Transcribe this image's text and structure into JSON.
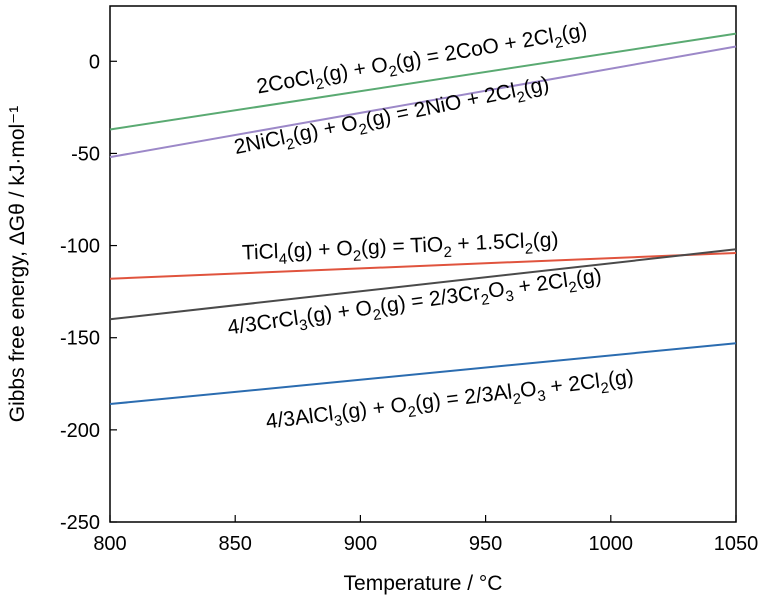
{
  "chart_data": {
    "type": "line",
    "title": "",
    "xlabel": "Temperature / °C",
    "ylabel": "Gibbs free energy, ΔGθ / kJ·mol⁻¹",
    "xlim": [
      800,
      1050
    ],
    "ylim": [
      -250,
      30
    ],
    "xticks": [
      800,
      850,
      900,
      950,
      1000,
      1050
    ],
    "yticks": [
      0,
      -50,
      -100,
      -150,
      -200,
      -250
    ],
    "grid": false,
    "series": [
      {
        "name": "2CoCl₂(g) + O₂(g) = 2CoO + 2Cl₂(g)",
        "color": "#5aaa72",
        "x": [
          800,
          1050
        ],
        "y": [
          -37,
          15
        ],
        "label_parts": [
          [
            "2CoCl",
            false
          ],
          [
            "2",
            true
          ],
          [
            "(g) + O",
            false
          ],
          [
            "2",
            true
          ],
          [
            "(g) = 2CoO + 2Cl",
            false
          ],
          [
            "2",
            true
          ],
          [
            "(g)",
            false
          ]
        ],
        "label_anchor": [
          925,
          -2
        ],
        "label_rotate": -9.8
      },
      {
        "name": "2NiCl₂(g) + O₂(g) = 2NiO + 2Cl₂(g)",
        "color": "#9c88c8",
        "x": [
          800,
          1050
        ],
        "y": [
          -52,
          8
        ],
        "label_parts": [
          [
            "2NiCl",
            false
          ],
          [
            "2",
            true
          ],
          [
            "(g) + O",
            false
          ],
          [
            "2",
            true
          ],
          [
            "(g) = 2NiO + 2Cl",
            false
          ],
          [
            "2",
            true
          ],
          [
            "(g)",
            false
          ]
        ],
        "label_anchor": [
          913,
          -33
        ],
        "label_rotate": -11.5
      },
      {
        "name": "TiCl₄(g) + O₂(g) = TiO₂ + 1.5Cl₂(g)",
        "color": "#e0533d",
        "x": [
          800,
          1050
        ],
        "y": [
          -118,
          -104
        ],
        "label_parts": [
          [
            "TiCl",
            false
          ],
          [
            "4",
            true
          ],
          [
            "(g) + O",
            false
          ],
          [
            "2",
            true
          ],
          [
            "(g) = TiO",
            false
          ],
          [
            "2",
            true
          ],
          [
            " + 1.5Cl",
            false
          ],
          [
            "2",
            true
          ],
          [
            "(g)",
            false
          ]
        ],
        "label_anchor": [
          916,
          -104
        ],
        "label_rotate": -2.4
      },
      {
        "name": "4/3CrCl₃(g) + O₂(g) = 2/3Cr₂O₃ + 2Cl₂(g)",
        "color": "#4a4a4a",
        "x": [
          800,
          1050
        ],
        "y": [
          -140,
          -102
        ],
        "label_parts": [
          [
            "4/3CrCl",
            false
          ],
          [
            "3",
            true
          ],
          [
            "(g) + O",
            false
          ],
          [
            "2",
            true
          ],
          [
            "(g) = 2/3Cr",
            false
          ],
          [
            "2",
            true
          ],
          [
            "O",
            false
          ],
          [
            "3",
            true
          ],
          [
            " + 2Cl",
            false
          ],
          [
            "2",
            true
          ],
          [
            "(g)",
            false
          ]
        ],
        "label_anchor": [
          922,
          -134
        ],
        "label_rotate": -8.0
      },
      {
        "name": "4/3AlCl₃(g) + O₂(g) = 2/3Al₂O₃ + 2Cl₂(g)",
        "color": "#2b6cb0",
        "x": [
          800,
          1050
        ],
        "y": [
          -186,
          -153
        ],
        "label_parts": [
          [
            "4/3AlCl",
            false
          ],
          [
            "3",
            true
          ],
          [
            "(g) + O",
            false
          ],
          [
            "2",
            true
          ],
          [
            "(g) = 2/3Al",
            false
          ],
          [
            "2",
            true
          ],
          [
            "O",
            false
          ],
          [
            "3",
            true
          ],
          [
            " + 2Cl",
            false
          ],
          [
            "2",
            true
          ],
          [
            "(g)",
            false
          ]
        ],
        "label_anchor": [
          936,
          -187
        ],
        "label_rotate": -7.0
      }
    ]
  }
}
